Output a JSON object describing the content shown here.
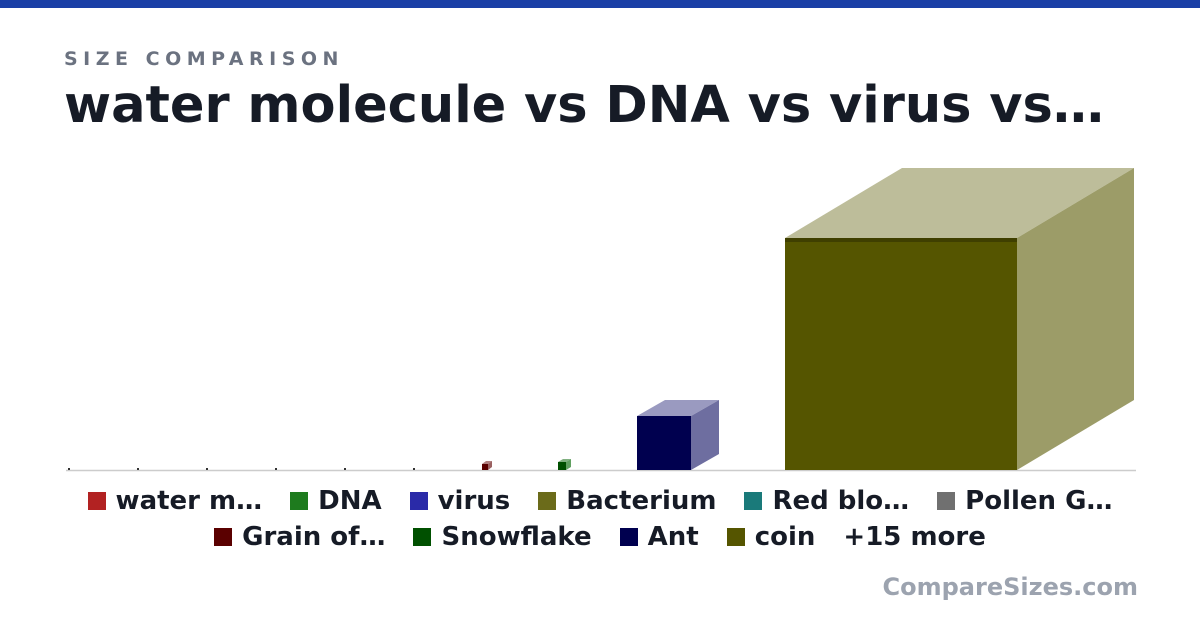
{
  "header": {
    "kicker": "SIZE COMPARISON",
    "title": "water molecule vs DNA vs virus vs…"
  },
  "legend": {
    "items": [
      {
        "label": "water m…",
        "color": "#b22222"
      },
      {
        "label": "DNA",
        "color": "#1e7b1e"
      },
      {
        "label": "virus",
        "color": "#2a2aa8"
      },
      {
        "label": "Bacterium",
        "color": "#6b6b1a"
      },
      {
        "label": "Red blo…",
        "color": "#1a7a7a"
      },
      {
        "label": "Pollen G…",
        "color": "#707070"
      },
      {
        "label": "Grain of…",
        "color": "#5a0000"
      },
      {
        "label": "Snowflake",
        "color": "#005000"
      },
      {
        "label": "Ant",
        "color": "#00004f"
      },
      {
        "label": "coin",
        "color": "#555500"
      }
    ],
    "more": "+15 more"
  },
  "footer": {
    "brand": "CompareSizes.com"
  }
}
